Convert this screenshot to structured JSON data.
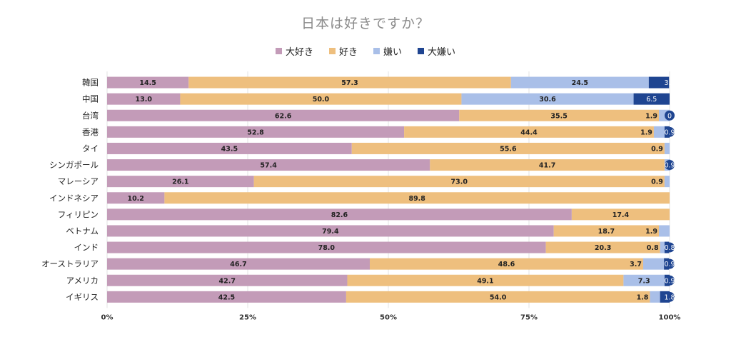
{
  "chart_data": {
    "type": "bar",
    "orientation": "horizontal",
    "stacked": "percent",
    "title": "日本は好きですか？",
    "categories": [
      "韓国",
      "中国",
      "台湾",
      "香港",
      "タイ",
      "シンガポール",
      "マレーシア",
      "インドネシア",
      "フィリピン",
      "ベトナム",
      "インド",
      "オーストラリア",
      "アメリカ",
      "イギリス"
    ],
    "series": [
      {
        "name": "大好き",
        "color": "#c39bb8",
        "values": [
          14.5,
          13.0,
          62.6,
          52.8,
          43.5,
          57.4,
          26.1,
          10.2,
          82.6,
          79.4,
          78.0,
          46.7,
          42.7,
          42.5
        ]
      },
      {
        "name": "好き",
        "color": "#eebf7e",
        "values": [
          57.3,
          50.0,
          35.5,
          44.4,
          55.6,
          41.7,
          73.0,
          89.8,
          17.4,
          18.7,
          20.3,
          48.6,
          49.1,
          54.0
        ]
      },
      {
        "name": "嫌い",
        "color": "#a9bfe8",
        "values": [
          24.5,
          30.6,
          1.9,
          1.9,
          0.9,
          0.9,
          0.9,
          0.0,
          0.0,
          1.9,
          0.8,
          3.7,
          7.3,
          1.8
        ]
      },
      {
        "name": "大嫌い",
        "color": "#1f4591",
        "values": [
          3.6,
          6.5,
          0.0,
          0.9,
          0.0,
          0.9,
          0.0,
          0.0,
          0.0,
          0.0,
          0.8,
          0.9,
          0.9,
          1.8
        ]
      }
    ],
    "data_labels": [
      [
        "14.5",
        "57.3",
        "24.5",
        "3.6"
      ],
      [
        "13.0",
        "50.0",
        "30.6",
        "6.5"
      ],
      [
        "62.6",
        "35.5",
        "1.9",
        "0"
      ],
      [
        "52.8",
        "44.4",
        "1.9",
        "0.9"
      ],
      [
        "43.5",
        "55.6",
        "0.9",
        ""
      ],
      [
        "57.4",
        "41.7",
        "",
        "0.9"
      ],
      [
        "26.1",
        "73.0",
        "0.9",
        ""
      ],
      [
        "10.2",
        "89.8",
        "",
        ""
      ],
      [
        "82.6",
        "17.4",
        "",
        ""
      ],
      [
        "79.4",
        "18.7",
        "1.9",
        ""
      ],
      [
        "78.0",
        "20.3",
        "0.8",
        "0.8"
      ],
      [
        "46.7",
        "48.6",
        "3.7",
        "0.9"
      ],
      [
        "42.7",
        "49.1",
        "7.3",
        "0.9"
      ],
      [
        "42.5",
        "54.0",
        "1.8",
        "1.8"
      ]
    ],
    "xaxis_ticks": [
      "0%",
      "25%",
      "50%",
      "75%",
      "100%"
    ],
    "xlim": [
      0,
      100
    ],
    "grid": true,
    "legend_position": "top"
  }
}
